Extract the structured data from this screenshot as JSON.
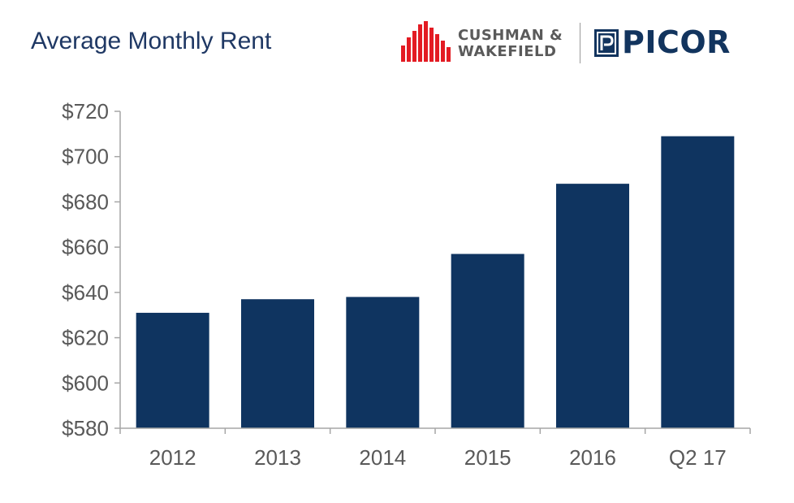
{
  "header": {
    "title": "Average Monthly Rent"
  },
  "logos": {
    "cushman_line1": "CUSHMAN &",
    "cushman_line2": "WAKEFIELD",
    "picor": "PICOR",
    "cushman_color": "#e31b23",
    "picor_color": "#12345e"
  },
  "chart_data": {
    "type": "bar",
    "title": "Average Monthly Rent",
    "xlabel": "",
    "ylabel": "",
    "categories": [
      "2012",
      "2013",
      "2014",
      "2015",
      "2016",
      "Q2 17"
    ],
    "values": [
      631,
      637,
      638,
      657,
      688,
      709
    ],
    "ylim": [
      580,
      720
    ],
    "ytick_step": 20,
    "ytick_labels": [
      "$580",
      "$600",
      "$620",
      "$640",
      "$660",
      "$680",
      "$700",
      "$720"
    ],
    "bar_color": "#0f3460",
    "grid": false,
    "legend": "none"
  }
}
